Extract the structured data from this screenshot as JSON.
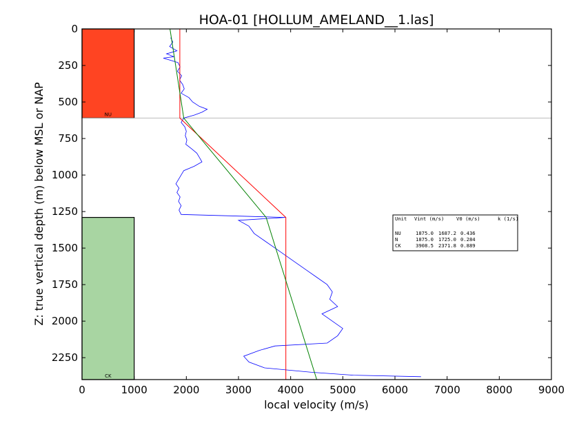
{
  "chart_data": {
    "type": "line",
    "title": "HOA-01 [HOLLUM_AMELAND__1.las]",
    "xlabel": "local velocity (m/s)",
    "ylabel": "Z: true vertical depth (m) below MSL or NAP",
    "xlim": [
      0,
      9000
    ],
    "ylim": [
      2400,
      0
    ],
    "y_inverted": true,
    "x_ticks": [
      "0",
      "1000",
      "2000",
      "3000",
      "4000",
      "5000",
      "6000",
      "7000",
      "8000",
      "9000"
    ],
    "y_ticks": [
      "0",
      "250",
      "500",
      "750",
      "1000",
      "1250",
      "1500",
      "1750",
      "2000",
      "2250"
    ],
    "grid": false,
    "unit_boundary_depth": 610,
    "units": [
      {
        "label": "NU",
        "top": 0,
        "base": 610,
        "x_max": 1000,
        "color": "#ff4422"
      },
      {
        "label": "CK",
        "top": 1290,
        "base": 2400,
        "x_max": 1000,
        "color": "#a8d5a2"
      }
    ],
    "series": [
      {
        "color": "#0000ff",
        "style": "velocity-log",
        "points": [
          [
            1700,
            60
          ],
          [
            1740,
            90
          ],
          [
            1680,
            120
          ],
          [
            1820,
            150
          ],
          [
            1620,
            170
          ],
          [
            1760,
            190
          ],
          [
            1560,
            200
          ],
          [
            1840,
            230
          ],
          [
            1880,
            260
          ],
          [
            1830,
            290
          ],
          [
            1910,
            320
          ],
          [
            1870,
            350
          ],
          [
            1930,
            380
          ],
          [
            1960,
            410
          ],
          [
            1900,
            440
          ],
          [
            2050,
            470
          ],
          [
            2120,
            500
          ],
          [
            2250,
            530
          ],
          [
            2400,
            550
          ],
          [
            2300,
            570
          ],
          [
            2150,
            590
          ],
          [
            1950,
            610
          ],
          [
            1900,
            640
          ],
          [
            1970,
            670
          ],
          [
            2000,
            700
          ],
          [
            1980,
            730
          ],
          [
            2010,
            760
          ],
          [
            1990,
            790
          ],
          [
            2100,
            820
          ],
          [
            2200,
            850
          ],
          [
            2250,
            880
          ],
          [
            2300,
            910
          ],
          [
            2150,
            940
          ],
          [
            1950,
            970
          ],
          [
            1900,
            1000
          ],
          [
            1850,
            1030
          ],
          [
            1800,
            1060
          ],
          [
            1860,
            1090
          ],
          [
            1820,
            1120
          ],
          [
            1880,
            1150
          ],
          [
            1850,
            1180
          ],
          [
            1900,
            1210
          ],
          [
            1860,
            1240
          ],
          [
            1900,
            1270
          ],
          [
            3900,
            1290
          ],
          [
            3000,
            1310
          ],
          [
            3200,
            1350
          ],
          [
            3300,
            1400
          ],
          [
            3500,
            1450
          ],
          [
            3700,
            1500
          ],
          [
            3900,
            1550
          ],
          [
            4100,
            1600
          ],
          [
            4300,
            1650
          ],
          [
            4500,
            1700
          ],
          [
            4700,
            1750
          ],
          [
            4800,
            1800
          ],
          [
            4750,
            1850
          ],
          [
            4900,
            1900
          ],
          [
            4600,
            1950
          ],
          [
            4800,
            2000
          ],
          [
            5000,
            2050
          ],
          [
            4900,
            2100
          ],
          [
            4700,
            2150
          ],
          [
            3700,
            2170
          ],
          [
            3400,
            2200
          ],
          [
            3100,
            2240
          ],
          [
            3200,
            2280
          ],
          [
            3500,
            2320
          ],
          [
            4400,
            2350
          ],
          [
            5200,
            2370
          ],
          [
            6500,
            2380
          ]
        ]
      },
      {
        "color": "#ff0000",
        "style": "interval-velocity",
        "points": [
          [
            1875,
            0
          ],
          [
            1875,
            610
          ],
          [
            3908.5,
            1290
          ],
          [
            3908.5,
            2400
          ]
        ]
      },
      {
        "color": "#008000",
        "style": "v0-k-model",
        "points": [
          [
            1687,
            0
          ],
          [
            1950,
            610
          ],
          [
            3530,
            1290
          ],
          [
            4500,
            2400
          ]
        ]
      }
    ],
    "table": {
      "header": {
        "unit": "Unit",
        "vint": "Vint (m/s)",
        "v0": "V0 (m/s)",
        "k": "k (1/s)"
      },
      "rows": [
        {
          "unit": "NU",
          "vint": "1875.0",
          "v0": "1687.2",
          "k": "0.436"
        },
        {
          "unit": "N",
          "vint": "1875.0",
          "v0": "1725.0",
          "k": "0.284"
        },
        {
          "unit": "CK",
          "vint": "3908.5",
          "v0": "2371.8",
          "k": "0.889"
        }
      ]
    }
  }
}
